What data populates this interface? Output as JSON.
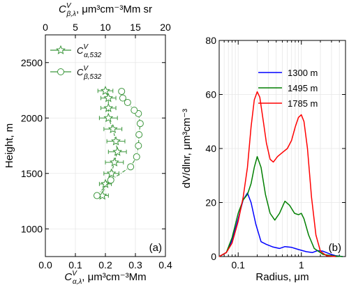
{
  "chart_data": [
    {
      "type": "scatter",
      "panel_label": "(a)",
      "xlabel_bottom": {
        "base": "C",
        "sup": "V",
        "sub": "α,λ",
        "unit": ", μm³cm⁻³Mm"
      },
      "xlabel_top": {
        "base": "C",
        "sup": "V",
        "sub": "β,λ",
        "unit": ", μm³cm⁻³Mm sr"
      },
      "ylabel": "Height, m",
      "xlim_bottom": [
        0.0,
        0.4
      ],
      "xlim_top": [
        0,
        20
      ],
      "ylim": [
        750,
        2750
      ],
      "xticks_bottom": [
        0.0,
        0.1,
        0.2,
        0.3,
        0.4
      ],
      "xtick_labels_bottom": [
        "0.0",
        "0.1",
        "0.2",
        "0.3",
        "0.4"
      ],
      "xticks_top": [
        0,
        5,
        10,
        15,
        20
      ],
      "xtick_labels_top": [
        "0",
        "5",
        "10",
        "15",
        "20"
      ],
      "yticks": [
        1000,
        1500,
        2000,
        2500
      ],
      "ytick_labels": [
        "1000",
        "1500",
        "2000",
        "2500"
      ],
      "grid": true,
      "legend_position": "top-left",
      "series": [
        {
          "name": {
            "base": "C",
            "sup": "V",
            "sub": "α,532"
          },
          "marker": "star",
          "axis": "bottom",
          "color": "#3c963c",
          "points": [
            {
              "x": 0.19,
              "y": 1300,
              "err": 0.02
            },
            {
              "x": 0.2,
              "y": 1405,
              "err": 0.02
            },
            {
              "x": 0.22,
              "y": 1500,
              "err": 0.025
            },
            {
              "x": 0.23,
              "y": 1600,
              "err": 0.03
            },
            {
              "x": 0.24,
              "y": 1695,
              "err": 0.03
            },
            {
              "x": 0.235,
              "y": 1790,
              "err": 0.03
            },
            {
              "x": 0.225,
              "y": 1900,
              "err": 0.03
            },
            {
              "x": 0.21,
              "y": 2000,
              "err": 0.03
            },
            {
              "x": 0.21,
              "y": 2090,
              "err": 0.025
            },
            {
              "x": 0.21,
              "y": 2180,
              "err": 0.025
            },
            {
              "x": 0.2,
              "y": 2245,
              "err": 0.025
            }
          ]
        },
        {
          "name": {
            "base": "C",
            "sup": "V",
            "sub": "β,532"
          },
          "marker": "circle",
          "axis": "top",
          "color": "#3c963c",
          "points": [
            {
              "x": 8.6,
              "y": 1300
            },
            {
              "x": 10.9,
              "y": 1440
            },
            {
              "x": 14.2,
              "y": 1560
            },
            {
              "x": 15.2,
              "y": 1650
            },
            {
              "x": 15.5,
              "y": 1750
            },
            {
              "x": 15.6,
              "y": 1850
            },
            {
              "x": 15.8,
              "y": 1950
            },
            {
              "x": 15.5,
              "y": 2040
            },
            {
              "x": 14.8,
              "y": 2070
            },
            {
              "x": 13.7,
              "y": 2140
            },
            {
              "x": 12.9,
              "y": 2180
            },
            {
              "x": 12.7,
              "y": 2240
            }
          ]
        }
      ]
    },
    {
      "type": "line",
      "panel_label": "(b)",
      "xlabel": "Radius, μm",
      "ylabel": "dV/dlnr, μm³cm⁻³",
      "xscale": "log",
      "xlim": [
        0.05,
        5
      ],
      "ylim": [
        0,
        80
      ],
      "xticks": [
        0.1,
        1
      ],
      "xtick_labels": [
        "0.1",
        "1"
      ],
      "yticks": [
        0,
        20,
        40,
        60,
        80
      ],
      "ytick_labels": [
        "0",
        "20",
        "40",
        "60",
        "80"
      ],
      "grid": true,
      "legend_position": "top-right",
      "series": [
        {
          "name": "1300 m",
          "color": "#0000ff",
          "points": [
            [
              0.05,
              0
            ],
            [
              0.065,
              1.5
            ],
            [
              0.08,
              6
            ],
            [
              0.1,
              14
            ],
            [
              0.12,
              21
            ],
            [
              0.14,
              23.5
            ],
            [
              0.16,
              20
            ],
            [
              0.19,
              12
            ],
            [
              0.23,
              5.5
            ],
            [
              0.28,
              4.5
            ],
            [
              0.35,
              3.6
            ],
            [
              0.45,
              3.0
            ],
            [
              0.55,
              3.7
            ],
            [
              0.7,
              3.4
            ],
            [
              0.9,
              2.6
            ],
            [
              1.2,
              1.8
            ],
            [
              1.5,
              1.5
            ],
            [
              1.8,
              2.2
            ],
            [
              2.2,
              2.0
            ],
            [
              2.8,
              1.0
            ],
            [
              3.5,
              0.3
            ],
            [
              4.5,
              0.0
            ]
          ]
        },
        {
          "name": "1495 m",
          "color": "#007f00",
          "points": [
            [
              0.05,
              0
            ],
            [
              0.065,
              1.5
            ],
            [
              0.08,
              7
            ],
            [
              0.1,
              16
            ],
            [
              0.12,
              21
            ],
            [
              0.14,
              23
            ],
            [
              0.16,
              27
            ],
            [
              0.18,
              33
            ],
            [
              0.2,
              37
            ],
            [
              0.23,
              33
            ],
            [
              0.27,
              23
            ],
            [
              0.32,
              16
            ],
            [
              0.38,
              13.5
            ],
            [
              0.45,
              16
            ],
            [
              0.55,
              20.5
            ],
            [
              0.65,
              19
            ],
            [
              0.78,
              16
            ],
            [
              0.9,
              15.5
            ],
            [
              1.0,
              16
            ],
            [
              1.1,
              14
            ],
            [
              1.3,
              8
            ],
            [
              1.6,
              3
            ],
            [
              2.2,
              0.8
            ],
            [
              3.0,
              0.3
            ],
            [
              4.5,
              0.0
            ]
          ]
        },
        {
          "name": "1785 m",
          "color": "#ff0000",
          "points": [
            [
              0.05,
              0
            ],
            [
              0.065,
              1.5
            ],
            [
              0.08,
              5
            ],
            [
              0.1,
              13
            ],
            [
              0.12,
              22
            ],
            [
              0.14,
              33
            ],
            [
              0.16,
              48
            ],
            [
              0.18,
              58
            ],
            [
              0.2,
              61
            ],
            [
              0.22,
              59
            ],
            [
              0.25,
              50
            ],
            [
              0.28,
              42
            ],
            [
              0.32,
              36
            ],
            [
              0.36,
              35
            ],
            [
              0.42,
              37
            ],
            [
              0.5,
              38.5
            ],
            [
              0.6,
              40
            ],
            [
              0.7,
              43
            ],
            [
              0.8,
              48
            ],
            [
              0.9,
              51.5
            ],
            [
              1.0,
              52.5
            ],
            [
              1.1,
              50
            ],
            [
              1.25,
              40
            ],
            [
              1.45,
              22
            ],
            [
              1.7,
              8
            ],
            [
              2.0,
              2
            ],
            [
              2.5,
              0.3
            ],
            [
              3.5,
              0.0
            ]
          ]
        }
      ]
    }
  ]
}
